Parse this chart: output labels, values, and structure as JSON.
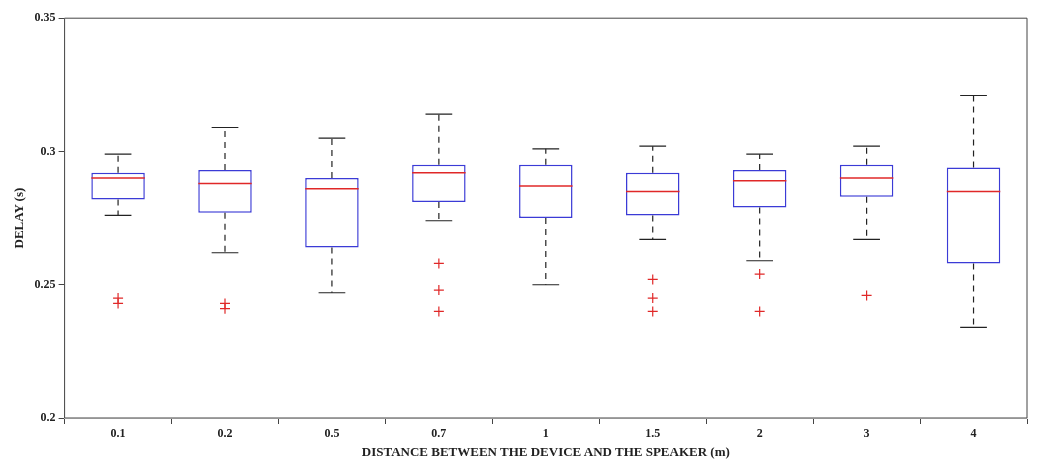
{
  "chart_data": {
    "type": "box",
    "xlabel": "DISTANCE BETWEEN THE DEVICE AND THE SPEAKER (m)",
    "ylabel": "DELAY (s)",
    "categories": [
      "0.1",
      "0.2",
      "0.5",
      "0.7",
      "1",
      "1.5",
      "2",
      "3",
      "4"
    ],
    "ylim": [
      0.2,
      0.35
    ],
    "yticks": [
      {
        "value": 0.2,
        "label": "0.2"
      },
      {
        "value": 0.25,
        "label": "0.25"
      },
      {
        "value": 0.3,
        "label": "0.3"
      },
      {
        "value": 0.35,
        "label": "0.35"
      }
    ],
    "grid": false,
    "legend": false,
    "marker": "cross",
    "line_style": "dashed",
    "series": [
      {
        "color": "#3b3bd6",
        "boxes": [
          {
            "low": 0.276,
            "q1": 0.282,
            "median": 0.29,
            "q3": 0.292,
            "high": 0.299,
            "outliers": [
              0.245,
              0.243
            ]
          },
          {
            "low": 0.262,
            "q1": 0.277,
            "median": 0.288,
            "q3": 0.293,
            "high": 0.309,
            "outliers": [
              0.243,
              0.241
            ]
          },
          {
            "low": 0.247,
            "q1": 0.264,
            "median": 0.286,
            "q3": 0.29,
            "high": 0.305
          },
          {
            "low": 0.274,
            "q1": 0.281,
            "median": 0.292,
            "q3": 0.295,
            "high": 0.314,
            "outliers": [
              0.258,
              0.248,
              0.24
            ]
          },
          {
            "low": 0.25,
            "q1": 0.275,
            "median": 0.287,
            "q3": 0.295,
            "high": 0.301
          },
          {
            "low": 0.267,
            "q1": 0.276,
            "median": 0.285,
            "q3": 0.292,
            "high": 0.302,
            "outliers": [
              0.252,
              0.245,
              0.24
            ]
          },
          {
            "low": 0.259,
            "q1": 0.279,
            "median": 0.289,
            "q3": 0.293,
            "high": 0.299,
            "outliers": [
              0.254,
              0.24
            ]
          },
          {
            "low": 0.267,
            "q1": 0.283,
            "median": 0.29,
            "q3": 0.295,
            "high": 0.302,
            "outliers": [
              0.246
            ]
          },
          {
            "low": 0.234,
            "q1": 0.258,
            "median": 0.285,
            "q3": 0.294,
            "high": 0.321
          }
        ]
      }
    ]
  }
}
